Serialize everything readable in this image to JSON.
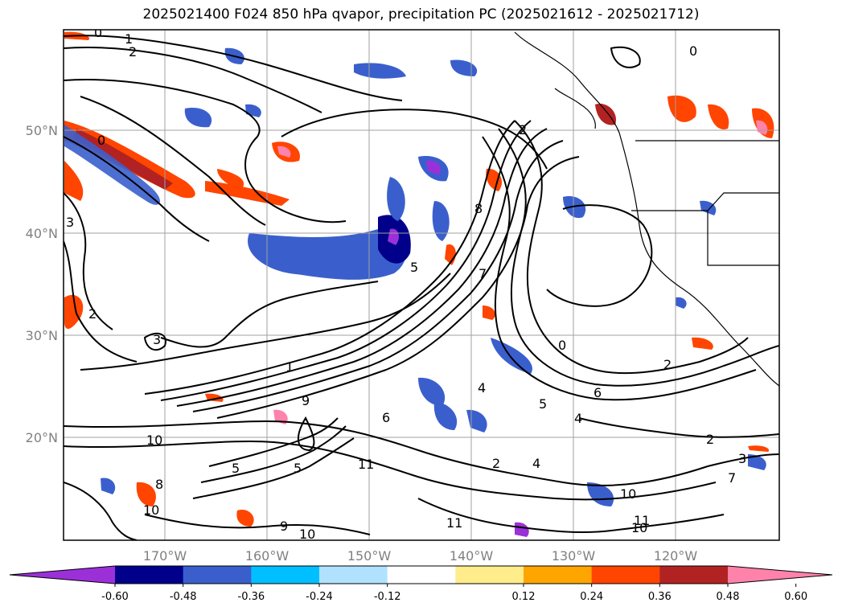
{
  "title": "2025021400 F024 850 hPa qvapor, precipitation PC (2025021612 - 2025021712)",
  "lat_labels": [
    "50°N",
    "40°N",
    "30°N",
    "20°N"
  ],
  "lon_labels": [
    "170°W",
    "160°W",
    "150°W",
    "140°W",
    "130°W",
    "120°W"
  ],
  "contour_labels": [
    "0",
    "1",
    "2",
    "2",
    "0",
    "0",
    "3",
    "2",
    "8",
    "5",
    "7",
    "0",
    "2",
    "6",
    "5",
    "4",
    "9",
    "10",
    "2",
    "5",
    "11",
    "2",
    "4",
    "3",
    "7",
    "10",
    "11",
    "11",
    "10",
    "9",
    "10",
    "8",
    "10",
    "5",
    "6",
    "3",
    "4",
    "1"
  ],
  "colorbar": {
    "tick_labels": [
      "-0.60",
      "-0.48",
      "-0.36",
      "-0.24",
      "-0.12",
      "0.12",
      "0.24",
      "0.36",
      "0.48",
      "0.60"
    ],
    "colors": [
      "#9b30d9",
      "#00008b",
      "#3a5fcd",
      "#00bfff",
      "#b0e2ff",
      "#ffffff",
      "#ffec8b",
      "#ffa500",
      "#ff4500",
      "#b22222",
      "#ff82ab",
      "#ff82ab"
    ]
  },
  "map": {
    "lon_range": [
      -180,
      -110
    ],
    "lat_range": [
      10,
      60
    ],
    "gridlines": true,
    "contour_field": "850 hPa qvapor",
    "fill_field": "precipitation PC"
  }
}
